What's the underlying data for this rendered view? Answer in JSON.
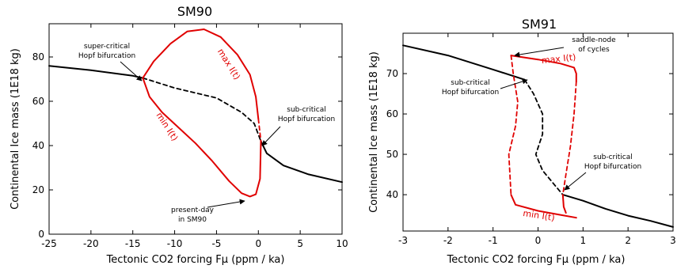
{
  "chart_data": [
    {
      "type": "line",
      "title": "SM90",
      "xlabel": "Tectonic CO2 forcing Fμ (ppm / ka)",
      "ylabel": "Continental Ice mass (1E18 kg)",
      "xlim": [
        -25,
        10
      ],
      "ylim": [
        0,
        95
      ],
      "x_ticks": [
        "-25",
        "-20",
        "-15",
        "-10",
        "-5",
        "0",
        "5",
        "10"
      ],
      "y_ticks": [
        "0",
        "20",
        "40",
        "60",
        "80"
      ],
      "x_tick_values": [
        -25,
        -20,
        -15,
        -10,
        -5,
        0,
        5,
        10
      ],
      "y_tick_values": [
        0,
        20,
        40,
        60,
        80
      ],
      "series": [
        {
          "style": "stable",
          "color": "#000000",
          "x": [
            -25,
            -20,
            -15,
            -13.8
          ],
          "y": [
            76,
            74,
            71.5,
            70.5
          ]
        },
        {
          "style": "unstable",
          "color": "#000000",
          "x": [
            -13.8,
            -10,
            -5,
            -2,
            -0.5,
            0.3
          ],
          "y": [
            70.5,
            66,
            61.5,
            55,
            50,
            42
          ]
        },
        {
          "style": "stable",
          "color": "#000000",
          "x": [
            0.3,
            1,
            3,
            6,
            10
          ],
          "y": [
            42,
            36.5,
            31,
            27,
            23.5
          ]
        },
        {
          "style": "stable",
          "color": "#e00000",
          "x": [
            -13.8,
            -12.5,
            -10.5,
            -8.5,
            -6.5,
            -4.5,
            -2.5,
            -1,
            -0.3,
            0
          ],
          "y": [
            70.5,
            78,
            86,
            91.5,
            92.5,
            89,
            81,
            72,
            62,
            52
          ]
        },
        {
          "style": "stable",
          "color": "#e00000",
          "x": [
            -13.8,
            -13,
            -11.5,
            -9.5,
            -7.5,
            -5.5,
            -3.5,
            -2,
            -1,
            -0.3,
            0.2,
            0.3
          ],
          "y": [
            70.5,
            62,
            55,
            48,
            41,
            33,
            24,
            18.5,
            17,
            18,
            25,
            42
          ]
        },
        {
          "style": "unstable",
          "color": "#e00000",
          "x": [
            0,
            0.3
          ],
          "y": [
            52,
            42
          ]
        }
      ],
      "annotations": [
        {
          "text_lines": [
            "super-critical",
            "Hopf bifurcation"
          ]
        },
        {
          "text_lines": [
            "sub-critical",
            "Hopf bifurcation"
          ]
        },
        {
          "text_lines": [
            "present-day",
            "in SM90"
          ]
        },
        {
          "text": "max I(t)"
        },
        {
          "text": "min I(t)"
        }
      ]
    },
    {
      "type": "line",
      "title": "SM91",
      "xlabel": "Tectonic CO2 forcing Fμ (ppm / ka)",
      "ylabel": "Continental Ice mass (1E18 kg)",
      "xlim": [
        -3,
        3
      ],
      "ylim": [
        31,
        80
      ],
      "x_ticks": [
        "-3",
        "-2",
        "-1",
        "0",
        "1",
        "2",
        "3"
      ],
      "y_ticks": [
        "40",
        "50",
        "60",
        "70"
      ],
      "x_tick_values": [
        -3,
        -2,
        -1,
        0,
        1,
        2,
        3
      ],
      "y_tick_values": [
        40,
        50,
        60,
        70
      ],
      "series": [
        {
          "style": "stable",
          "color": "#000000",
          "x": [
            -3,
            -2,
            -1,
            -0.3
          ],
          "y": [
            77,
            74.5,
            71,
            68.5
          ]
        },
        {
          "style": "unstable",
          "color": "#000000",
          "x": [
            -0.3,
            -0.1,
            0.1,
            0.1,
            -0.05,
            0.1,
            0.4,
            0.55
          ],
          "y": [
            68.5,
            65,
            60,
            55,
            50,
            46,
            42,
            40
          ]
        },
        {
          "style": "stable",
          "color": "#000000",
          "x": [
            0.55,
            1,
            1.5,
            2,
            2.5,
            3
          ],
          "y": [
            40,
            38.5,
            36.5,
            34.8,
            33.5,
            32
          ]
        },
        {
          "style": "stable",
          "color": "#e00000",
          "x": [
            -0.6,
            0,
            0.5,
            0.8,
            0.85,
            0.85
          ],
          "y": [
            74.5,
            73.5,
            72.5,
            71.5,
            70,
            68
          ]
        },
        {
          "style": "unstable",
          "color": "#e00000",
          "x": [
            0.85,
            0.8,
            0.72,
            0.62,
            0.55
          ],
          "y": [
            68,
            60,
            52,
            45,
            40
          ]
        },
        {
          "style": "unstable",
          "color": "#e00000",
          "x": [
            -0.6,
            -0.55,
            -0.45,
            -0.5,
            -0.65,
            -0.6
          ],
          "y": [
            74.5,
            70,
            63,
            57,
            50,
            40
          ]
        },
        {
          "style": "stable",
          "color": "#e00000",
          "x": [
            -0.6,
            -0.5,
            0,
            0.5,
            0.85
          ],
          "y": [
            40,
            37.5,
            36,
            35,
            34.3
          ]
        },
        {
          "style": "stable",
          "color": "#e00000",
          "x": [
            0.55,
            0.57,
            0.62
          ],
          "y": [
            40,
            37,
            35.5
          ]
        }
      ],
      "annotations": [
        {
          "text_lines": [
            "saddle-node",
            "of cycles"
          ]
        },
        {
          "text_lines": [
            "sub-critical",
            "Hopf bifurcation"
          ]
        },
        {
          "text_lines": [
            "sub-critical",
            "Hopf bifurcation"
          ]
        },
        {
          "text": "max I(t)"
        },
        {
          "text": "min I(t)"
        }
      ]
    }
  ]
}
